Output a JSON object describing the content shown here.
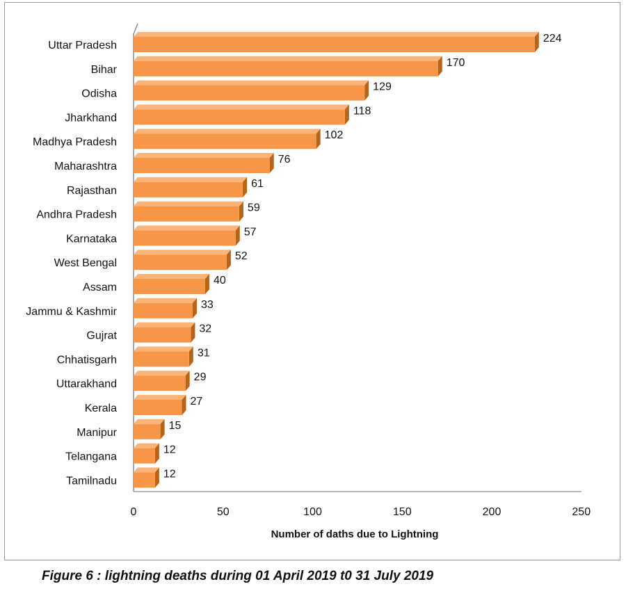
{
  "figure": {
    "caption": "Figure 6 : lightning deaths during 01 April 2019 t0 31 July 2019"
  },
  "colors": {
    "bar_front": "#F79646",
    "bar_top": "#FBB477",
    "bar_side": "#B3651F",
    "frame": "#9a9a9a",
    "axis": "#8c8c8c"
  },
  "chart_data": {
    "type": "bar",
    "orientation": "horizontal",
    "style": "3d",
    "categories": [
      "Uttar Pradesh",
      "Bihar",
      "Odisha",
      "Jharkhand",
      "Madhya Pradesh",
      "Maharashtra",
      "Rajasthan",
      "Andhra Pradesh",
      "Karnataka",
      "West Bengal",
      "Assam",
      "Jammu & Kashmir",
      "Gujrat",
      "Chhatisgarh",
      "Uttarakhand",
      "Kerala",
      "Manipur",
      "Telangana",
      "Tamilnadu"
    ],
    "values": [
      224,
      170,
      129,
      118,
      102,
      76,
      61,
      59,
      57,
      52,
      40,
      33,
      32,
      31,
      29,
      27,
      15,
      12,
      12
    ],
    "xlabel": "Number of daths due to Lightning",
    "xlim": [
      0,
      250
    ],
    "xticks": [
      "0",
      "50",
      "100",
      "150",
      "200",
      "250"
    ],
    "grid": false,
    "legend": "none",
    "data_labels": true
  }
}
